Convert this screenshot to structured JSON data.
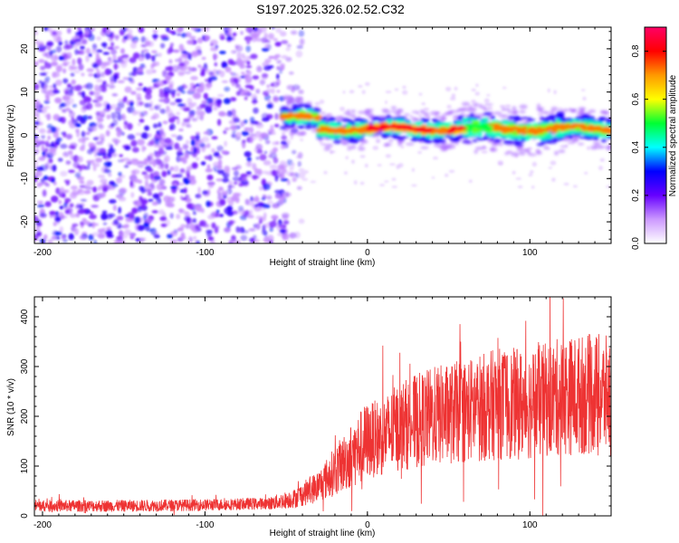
{
  "chart_data": [
    {
      "type": "heatmap",
      "title": "S197.2025.326.02.52.C32",
      "xlabel": "Height of straight line (km)",
      "ylabel": "Frequency (Hz)",
      "xlim": [
        -205,
        150
      ],
      "ylim": [
        -25,
        25
      ],
      "xticks": [
        -200,
        -100,
        0,
        100
      ],
      "yticks": [
        -20,
        -10,
        0,
        10,
        20
      ],
      "colorbar": {
        "label": "Normalized spectral amplitude",
        "range": [
          0,
          0.9
        ],
        "ticks": [
          0.0,
          0.2,
          0.4,
          0.6,
          0.8
        ],
        "tick_labels": [
          "0.0",
          "0.2",
          "0.4",
          "0.6",
          "0.8"
        ],
        "colors": [
          "#ffffff",
          "#cc99ff",
          "#6600ff",
          "#0000ff",
          "#00ffff",
          "#00ff33",
          "#ffff00",
          "#ff9900",
          "#ff0000",
          "#ff0066"
        ]
      },
      "regions": [
        {
          "name": "noise",
          "x": [
            -205,
            -50
          ],
          "freq": [
            -25,
            25
          ],
          "level": 0.1
        },
        {
          "name": "signal-band",
          "x": [
            -55,
            150
          ],
          "center_freq": 1.5,
          "level": 0.8
        }
      ]
    },
    {
      "type": "line",
      "xlabel": "Height of straight line (km)",
      "ylabel": "SNR (10 * v/v)",
      "xlim": [
        -205,
        150
      ],
      "ylim": [
        0,
        440
      ],
      "xticks": [
        -200,
        -100,
        0,
        100
      ],
      "yticks": [
        0,
        100,
        200,
        300,
        400
      ],
      "series": [
        {
          "name": "SNR",
          "color": "#ee3333",
          "x": [
            -205,
            -150,
            -100,
            -60,
            -45,
            -30,
            -20,
            -10,
            0,
            10,
            20,
            40,
            60,
            80,
            100,
            120,
            140,
            150
          ],
          "y": [
            20,
            20,
            22,
            25,
            35,
            60,
            90,
            120,
            150,
            160,
            180,
            200,
            210,
            225,
            225,
            240,
            245,
            240
          ]
        }
      ]
    }
  ]
}
